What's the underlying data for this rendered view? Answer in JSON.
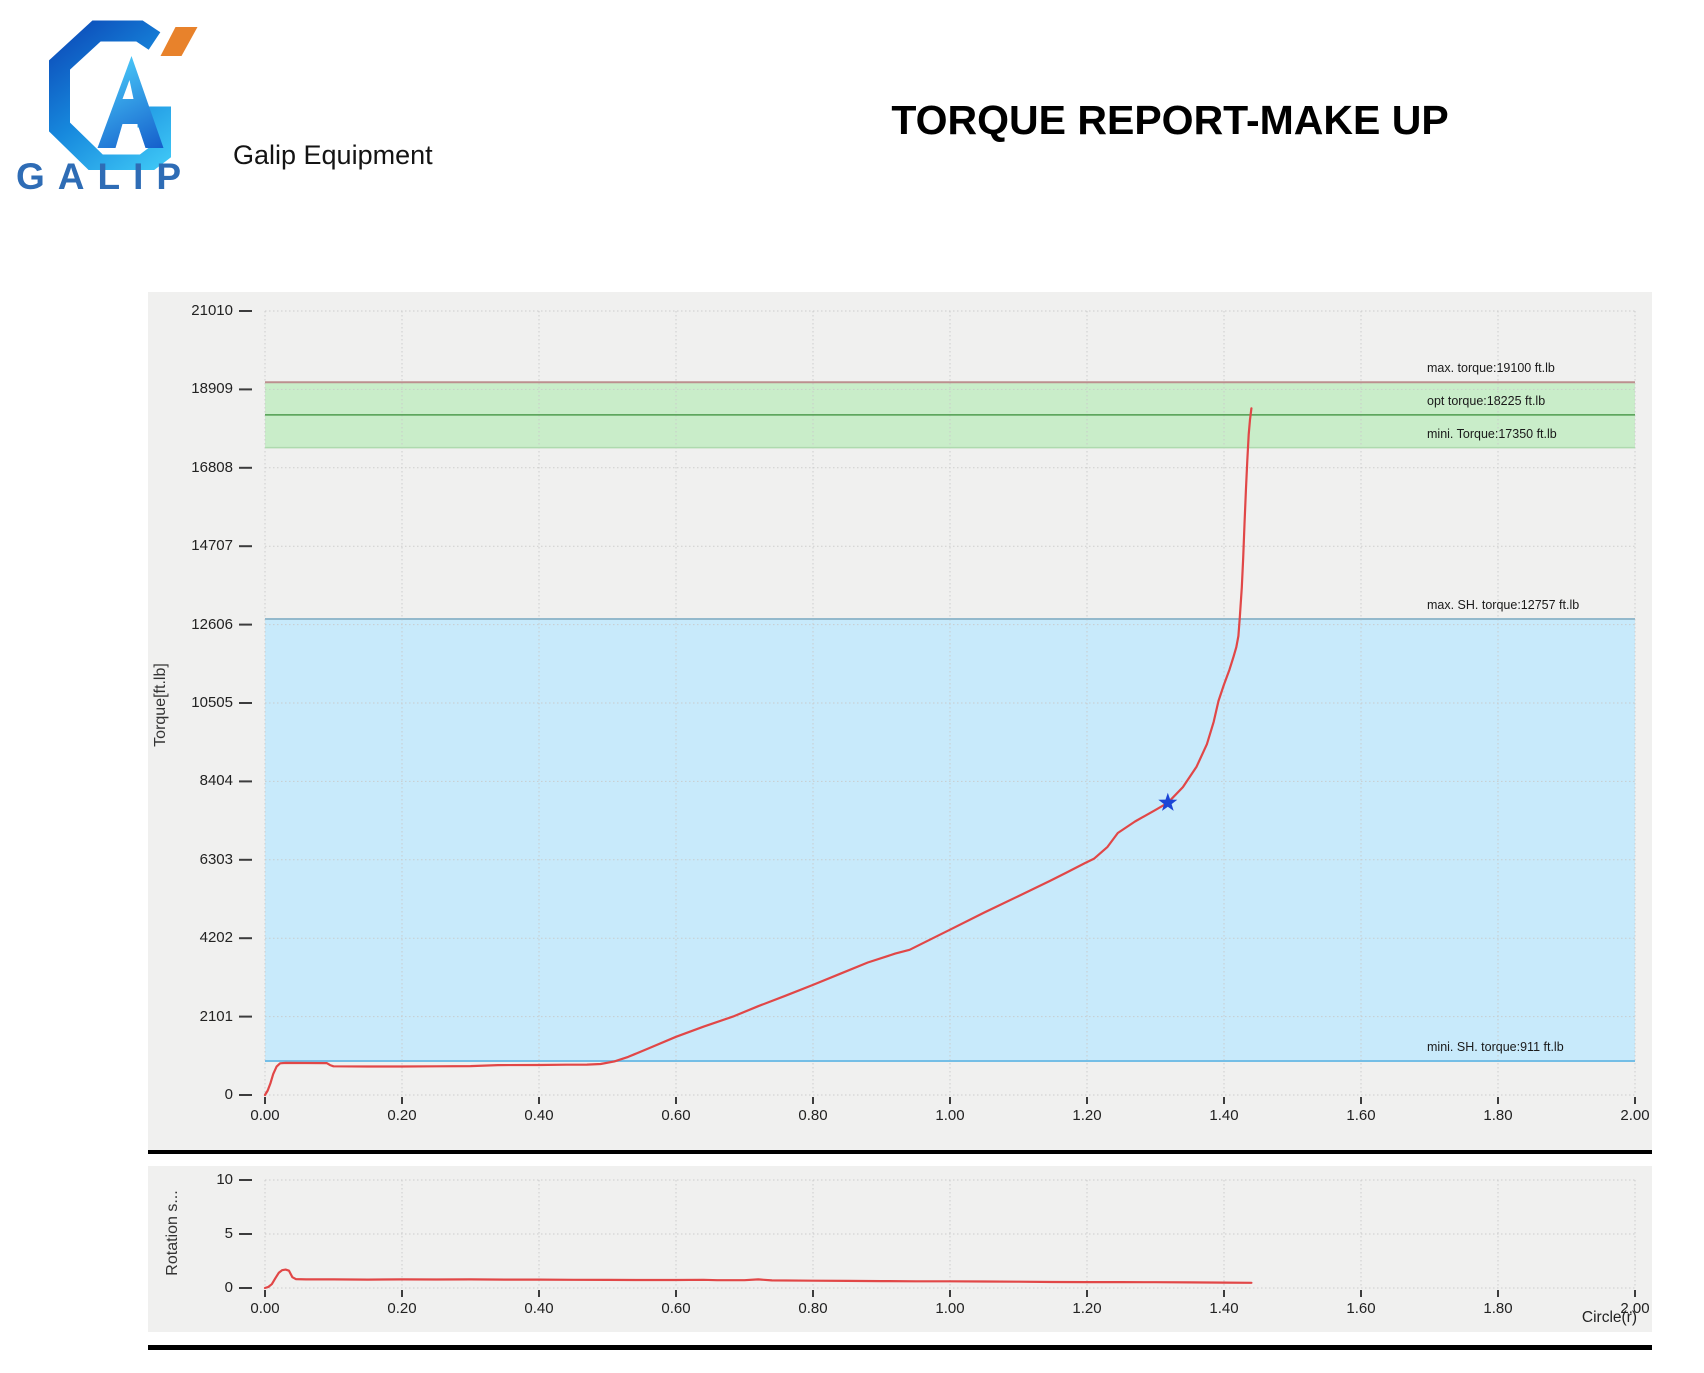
{
  "header": {
    "logo_text": "GALIP",
    "company_name": "Galip Equipment",
    "report_title": "TORQUE REPORT-MAKE UP",
    "logo_colors": {
      "blue_dark": "#0c4ab8",
      "blue_light": "#3fc8f6",
      "orange": "#e8822b",
      "word_blue": "#2e6cb5"
    }
  },
  "chart_data": [
    {
      "type": "line",
      "title": "",
      "xlabel": "",
      "ylabel": "Torque[ft.lb]",
      "xlim": [
        0,
        2.0
      ],
      "ylim": [
        0,
        21010
      ],
      "grid": true,
      "legend": "none",
      "xticks": [
        0,
        0.2,
        0.4,
        0.6,
        0.8,
        1.0,
        1.2,
        1.4,
        1.6,
        1.8,
        2.0
      ],
      "yticks": [
        0,
        2101,
        4202,
        6303,
        8404,
        10505,
        12606,
        14707,
        16808,
        18909,
        21010
      ],
      "bands": [
        {
          "name": "target-torque-band",
          "from": 17350,
          "to": 19100,
          "color": "#c9edc9"
        },
        {
          "name": "shoulder-torque-band",
          "from": 911,
          "to": 12757,
          "color": "#c8eafb"
        }
      ],
      "ref_lines": [
        {
          "label": "max. torque:19100 ft.lb",
          "value": 19100,
          "color": "#bc8f8f",
          "width": 2
        },
        {
          "label": "opt torque:18225 ft.lb",
          "value": 18225,
          "color": "#4f9b4f",
          "width": 1.5
        },
        {
          "label": "mini. Torque:17350 ft.lb",
          "value": 17350,
          "color": "#aedaae",
          "width": 1.5
        },
        {
          "label": "max. SH. torque:12757 ft.lb",
          "value": 12757,
          "color": "#93b9cc",
          "width": 2
        },
        {
          "label": "mini. SH. torque:911 ft.lb",
          "value": 911,
          "color": "#74bee6",
          "width": 2
        }
      ],
      "series": [
        {
          "name": "torque-curve",
          "color": "#e14747",
          "points": [
            [
              0.0,
              0
            ],
            [
              0.004,
              120
            ],
            [
              0.008,
              320
            ],
            [
              0.012,
              560
            ],
            [
              0.017,
              760
            ],
            [
              0.022,
              850
            ],
            [
              0.03,
              860
            ],
            [
              0.06,
              858
            ],
            [
              0.09,
              855
            ],
            [
              0.095,
              800
            ],
            [
              0.1,
              770
            ],
            [
              0.15,
              765
            ],
            [
              0.2,
              765
            ],
            [
              0.25,
              768
            ],
            [
              0.3,
              775
            ],
            [
              0.34,
              800
            ],
            [
              0.4,
              805
            ],
            [
              0.44,
              812
            ],
            [
              0.47,
              815
            ],
            [
              0.49,
              830
            ],
            [
              0.51,
              900
            ],
            [
              0.53,
              1020
            ],
            [
              0.56,
              1250
            ],
            [
              0.6,
              1560
            ],
            [
              0.64,
              1830
            ],
            [
              0.683,
              2101
            ],
            [
              0.72,
              2380
            ],
            [
              0.76,
              2660
            ],
            [
              0.8,
              2950
            ],
            [
              0.84,
              3250
            ],
            [
              0.88,
              3550
            ],
            [
              0.92,
              3790
            ],
            [
              0.941,
              3890
            ],
            [
              0.975,
              4202
            ],
            [
              1.0,
              4430
            ],
            [
              1.05,
              4890
            ],
            [
              1.1,
              5330
            ],
            [
              1.146,
              5737
            ],
            [
              1.17,
              5960
            ],
            [
              1.197,
              6215
            ],
            [
              1.21,
              6330
            ],
            [
              1.23,
              6650
            ],
            [
              1.245,
              7020
            ],
            [
              1.27,
              7330
            ],
            [
              1.3,
              7640
            ],
            [
              1.318,
              7830
            ],
            [
              1.34,
              8250
            ],
            [
              1.36,
              8800
            ],
            [
              1.375,
              9400
            ],
            [
              1.385,
              10000
            ],
            [
              1.392,
              10560
            ],
            [
              1.4,
              11000
            ],
            [
              1.408,
              11400
            ],
            [
              1.414,
              11750
            ],
            [
              1.418,
              12000
            ],
            [
              1.421,
              12300
            ],
            [
              1.423,
              12800
            ],
            [
              1.426,
              13600
            ],
            [
              1.428,
              14400
            ],
            [
              1.43,
              15300
            ],
            [
              1.432,
              16200
            ],
            [
              1.434,
              17000
            ],
            [
              1.436,
              17700
            ],
            [
              1.438,
              18100
            ],
            [
              1.44,
              18400
            ]
          ]
        }
      ],
      "markers": [
        {
          "name": "shoulder-point-marker",
          "shape": "star",
          "x": 1.318,
          "y": 7830,
          "color": "#1b45d6"
        }
      ]
    },
    {
      "type": "line",
      "title": "",
      "xlabel": "Circle(r)",
      "ylabel": "Rotation s...",
      "xlim": [
        0,
        2.0
      ],
      "ylim": [
        0,
        10
      ],
      "grid": true,
      "legend": "none",
      "xticks": [
        0,
        0.2,
        0.4,
        0.6,
        0.8,
        1.0,
        1.2,
        1.4,
        1.6,
        1.8,
        2.0
      ],
      "yticks": [
        0,
        5,
        10
      ],
      "bands": [],
      "ref_lines": [],
      "series": [
        {
          "name": "rotation-speed-curve",
          "color": "#e14747",
          "points": [
            [
              0.0,
              0.0
            ],
            [
              0.005,
              0.1
            ],
            [
              0.01,
              0.35
            ],
            [
              0.015,
              0.9
            ],
            [
              0.02,
              1.4
            ],
            [
              0.025,
              1.65
            ],
            [
              0.03,
              1.7
            ],
            [
              0.035,
              1.6
            ],
            [
              0.04,
              1.0
            ],
            [
              0.045,
              0.82
            ],
            [
              0.06,
              0.8
            ],
            [
              0.1,
              0.8
            ],
            [
              0.15,
              0.78
            ],
            [
              0.2,
              0.8
            ],
            [
              0.25,
              0.79
            ],
            [
              0.3,
              0.8
            ],
            [
              0.35,
              0.78
            ],
            [
              0.4,
              0.78
            ],
            [
              0.45,
              0.76
            ],
            [
              0.5,
              0.75
            ],
            [
              0.55,
              0.74
            ],
            [
              0.6,
              0.74
            ],
            [
              0.64,
              0.76
            ],
            [
              0.66,
              0.72
            ],
            [
              0.7,
              0.72
            ],
            [
              0.72,
              0.8
            ],
            [
              0.74,
              0.7
            ],
            [
              0.8,
              0.68
            ],
            [
              0.85,
              0.66
            ],
            [
              0.9,
              0.64
            ],
            [
              0.95,
              0.62
            ],
            [
              1.0,
              0.62
            ],
            [
              1.05,
              0.6
            ],
            [
              1.1,
              0.58
            ],
            [
              1.15,
              0.56
            ],
            [
              1.2,
              0.55
            ],
            [
              1.25,
              0.55
            ],
            [
              1.3,
              0.54
            ],
            [
              1.35,
              0.52
            ],
            [
              1.4,
              0.5
            ],
            [
              1.44,
              0.48
            ]
          ]
        }
      ],
      "markers": []
    }
  ]
}
